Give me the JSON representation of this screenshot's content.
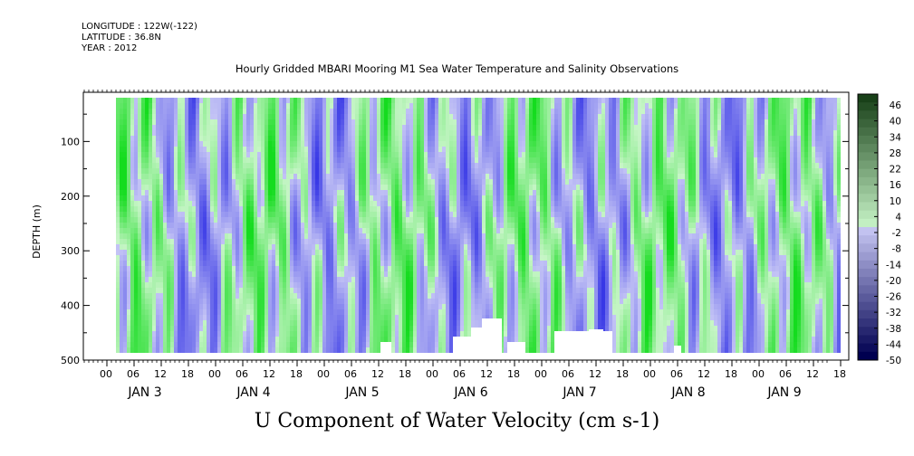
{
  "meta": {
    "longitude": "LONGITUDE : 122W(-122)",
    "latitude": "LATITUDE : 36.8N",
    "year": "YEAR : 2012"
  },
  "title": "Hourly Gridded MBARI Mooring M1 Sea Water Temperature and Salinity Observations",
  "subtitle": "U Component of Water Velocity (cm s-1)",
  "chart_data": {
    "type": "heatmap",
    "title": "Hourly Gridded MBARI Mooring M1 Sea Water Temperature and Salinity Observations",
    "xlabel": "",
    "ylabel": "DEPTH (m)",
    "ylim": [
      500,
      10
    ],
    "y_ticks": [
      "100",
      "200",
      "300",
      "400",
      "500"
    ],
    "x_hour_ticks": [
      "00",
      "06",
      "12",
      "18",
      "00",
      "06",
      "12",
      "18",
      "00",
      "06",
      "12",
      "18",
      "00",
      "06",
      "12",
      "18",
      "00",
      "06",
      "12",
      "18",
      "00",
      "06",
      "12",
      "18",
      "00",
      "06",
      "12",
      "18"
    ],
    "x_day_labels": [
      "JAN  3",
      "JAN  4",
      "JAN  5",
      "JAN  6",
      "JAN  7",
      "JAN  8",
      "JAN  9"
    ],
    "colorbar_levels": [
      "46",
      "40",
      "34",
      "28",
      "22",
      "16",
      "10",
      "4",
      "-2",
      "-8",
      "-14",
      "-20",
      "-26",
      "-32",
      "-38",
      "-44",
      "-50"
    ],
    "colormap": {
      "positive": [
        "#c8f5c8",
        "#1a3d1a"
      ],
      "negative": [
        "#c8c8f5",
        "#000050"
      ]
    }
  }
}
